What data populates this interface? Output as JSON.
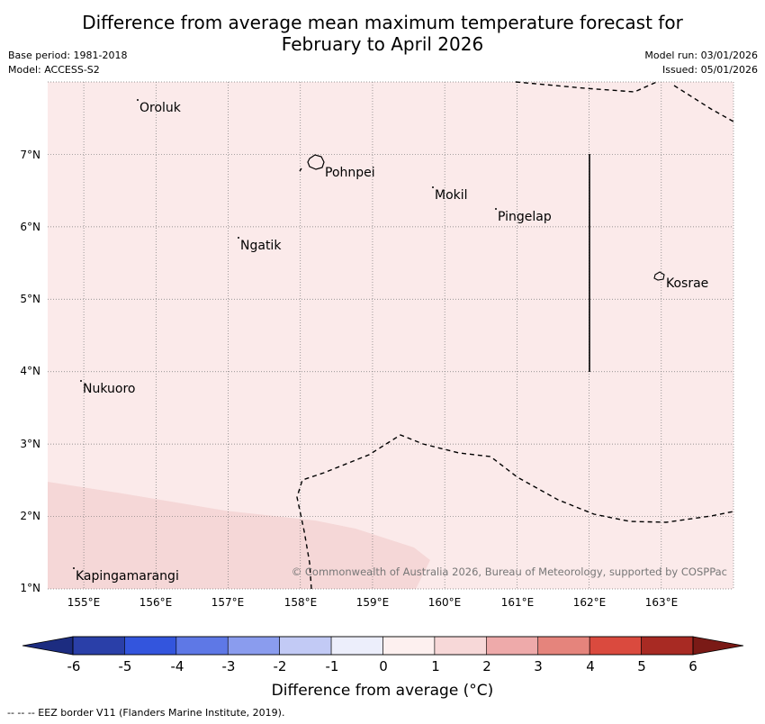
{
  "title": {
    "line1": "Difference from average mean maximum temperature forecast for",
    "line2": "February to April 2026"
  },
  "meta": {
    "base_period": "Base period: 1981-2018",
    "model": "Model: ACCESS-S2",
    "model_run": "Model run: 03/01/2026",
    "issued": "Issued: 05/01/2026"
  },
  "axes": {
    "lat_labels": [
      "7°N",
      "6°N",
      "5°N",
      "4°N",
      "3°N",
      "2°N",
      "1°N"
    ],
    "lon_labels": [
      "155°E",
      "156°E",
      "157°E",
      "158°E",
      "159°E",
      "160°E",
      "161°E",
      "162°E",
      "163°E"
    ],
    "lon_range": [
      154.5,
      164.0
    ],
    "lat_range": [
      1.0,
      8.0
    ]
  },
  "places": {
    "oroluk": "Oroluk",
    "pohnpei": "Pohnpei",
    "mokil": "Mokil",
    "pingelap": "Pingelap",
    "ngatik": "Ngatik",
    "kosrae": "Kosrae",
    "nukuoro": "Nukuoro",
    "kapingamarangi": "Kapingamarangi"
  },
  "copyright": "© Commonwealth of Australia 2026, Bureau of Meteorology, supported by COSPPac",
  "colorbar": {
    "ticks": [
      "-6",
      "-5",
      "-4",
      "-3",
      "-2",
      "-1",
      "0",
      "1",
      "2",
      "3",
      "4",
      "5",
      "6"
    ],
    "colors": [
      "#2a3fa8",
      "#3355dd",
      "#5e78e6",
      "#8a9cee",
      "#c2caf5",
      "#eceefb",
      "#fdf0ef",
      "#f7d8d8",
      "#eeaaaa",
      "#e5847c",
      "#da4a3e",
      "#a82a23"
    ],
    "under_color": "#1c2c80",
    "over_color": "#7a1a16",
    "label": "Difference from average (°C)"
  },
  "colors": {
    "background_fill": "#fbeaea",
    "warm_patch_fill": "#f5d7d7"
  },
  "legend_note": "-- -- -- EEZ border V11 (Flanders Marine Institute, 2019)."
}
